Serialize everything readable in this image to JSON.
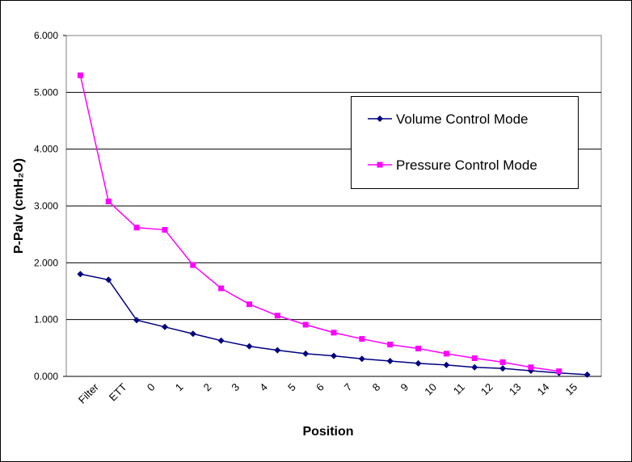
{
  "chart_data": {
    "type": "line",
    "x_label": "Position",
    "y_label": "P-Palv (cmH₂O)",
    "categories": [
      "Filter",
      "ETT",
      "0",
      "1",
      "2",
      "3",
      "4",
      "5",
      "6",
      "7",
      "8",
      "9",
      "10",
      "11",
      "12",
      "13",
      "14",
      "15",
      null
    ],
    "series": [
      {
        "name": "Volume Control Mode",
        "color": "#000080",
        "marker": "diamond",
        "values": [
          1.8,
          1.7,
          0.99,
          0.87,
          0.75,
          0.63,
          0.53,
          0.46,
          0.4,
          0.36,
          0.31,
          0.27,
          0.23,
          0.2,
          0.16,
          0.14,
          0.1,
          0.06,
          0.03
        ]
      },
      {
        "name": "Pressure Control Mode",
        "color": "#ff00ff",
        "marker": "square",
        "values": [
          5.3,
          3.08,
          2.62,
          2.58,
          1.96,
          1.55,
          1.27,
          1.07,
          0.91,
          0.77,
          0.66,
          0.56,
          0.49,
          0.4,
          0.32,
          0.25,
          0.16,
          0.09,
          null
        ]
      }
    ],
    "ylim": [
      0,
      6
    ],
    "yticks": [
      {
        "value": 0,
        "label": "0.000"
      },
      {
        "value": 1,
        "label": "1.000"
      },
      {
        "value": 2,
        "label": "2.000"
      },
      {
        "value": 3,
        "label": "3.000"
      },
      {
        "value": 4,
        "label": "4.000"
      },
      {
        "value": 5,
        "label": "5.000"
      },
      {
        "value": 6,
        "label": "6.000"
      }
    ],
    "grid": true,
    "legend": "upper right"
  }
}
